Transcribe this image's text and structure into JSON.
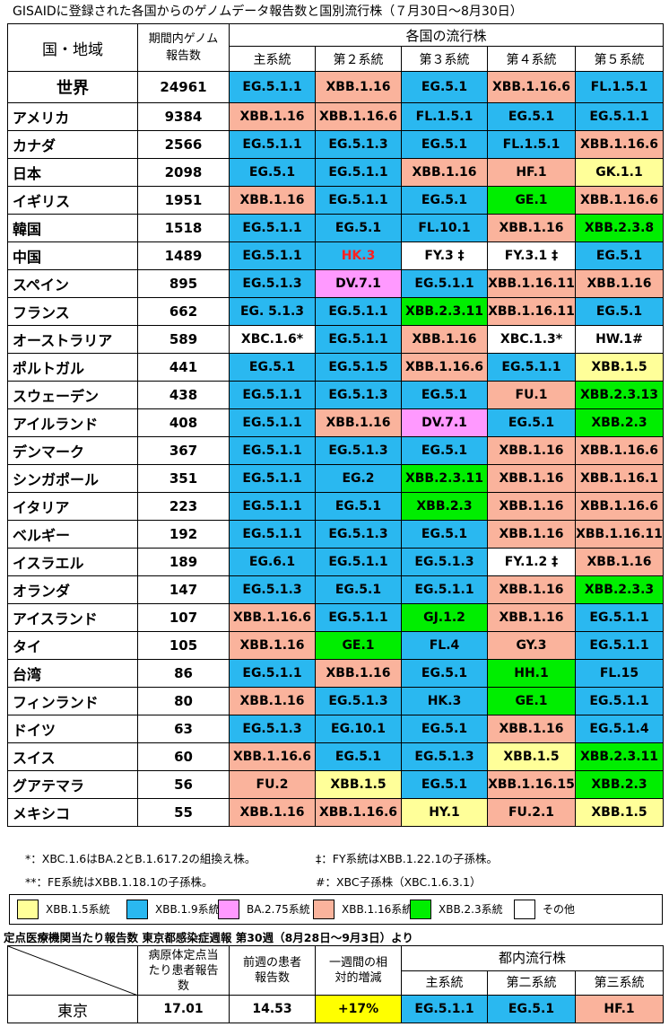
{
  "title": "GISAIDに登録された各国からのゲノムデータ報告数と国別流行株（７月30日～8月30日）",
  "header": {
    "country_region": "国・地域",
    "report_count_line1": "期間内ゲノム",
    "report_count_line2": "報告数",
    "lineages": "各国の流行株",
    "sub": [
      "主系統",
      "第２系統",
      "第３系統",
      "第４系統",
      "第５系統"
    ]
  },
  "rows": [
    {
      "country": "世界",
      "count": "24961",
      "lineages": [
        {
          "name": "EG.5.1.1",
          "group": "xbb19"
        },
        {
          "name": "XBB.1.16",
          "group": "xbb116"
        },
        {
          "name": "EG.5.1",
          "group": "xbb19"
        },
        {
          "name": "XBB.1.16.6",
          "group": "xbb116"
        },
        {
          "name": "FL.1.5.1",
          "group": "xbb19"
        }
      ]
    },
    {
      "country": "アメリカ",
      "count": "9384",
      "lineages": [
        {
          "name": "XBB.1.16",
          "group": "xbb116"
        },
        {
          "name": "XBB.1.16.6",
          "group": "xbb116"
        },
        {
          "name": "FL.1.5.1",
          "group": "xbb19"
        },
        {
          "name": "EG.5.1",
          "group": "xbb19"
        },
        {
          "name": "EG.5.1.1",
          "group": "xbb19"
        }
      ]
    },
    {
      "country": "カナダ",
      "count": "2566",
      "lineages": [
        {
          "name": "EG.5.1.1",
          "group": "xbb19"
        },
        {
          "name": "EG.5.1.3",
          "group": "xbb19"
        },
        {
          "name": "EG.5.1",
          "group": "xbb19"
        },
        {
          "name": "FL.1.5.1",
          "group": "xbb19"
        },
        {
          "name": "XBB.1.16.6",
          "group": "xbb116"
        }
      ]
    },
    {
      "country": "日本",
      "count": "2098",
      "lineages": [
        {
          "name": "EG.5.1",
          "group": "xbb19"
        },
        {
          "name": "EG.5.1.1",
          "group": "xbb19"
        },
        {
          "name": "XBB.1.16",
          "group": "xbb116"
        },
        {
          "name": "HF.1",
          "group": "xbb116"
        },
        {
          "name": "GK.1.1",
          "group": "xbb15"
        }
      ]
    },
    {
      "country": "イギリス",
      "count": "1951",
      "lineages": [
        {
          "name": "XBB.1.16",
          "group": "xbb116"
        },
        {
          "name": "EG.5.1.1",
          "group": "xbb19"
        },
        {
          "name": "EG.5.1",
          "group": "xbb19"
        },
        {
          "name": "GE.1",
          "group": "xbb23"
        },
        {
          "name": "XBB.1.16.6",
          "group": "xbb116"
        }
      ]
    },
    {
      "country": "韓国",
      "count": "1518",
      "lineages": [
        {
          "name": "EG.5.1.1",
          "group": "xbb19"
        },
        {
          "name": "EG.5.1",
          "group": "xbb19"
        },
        {
          "name": "FL.10.1",
          "group": "xbb19"
        },
        {
          "name": "XBB.1.16",
          "group": "xbb116"
        },
        {
          "name": "XBB.2.3.8",
          "group": "xbb23"
        }
      ]
    },
    {
      "country": "中国",
      "count": "1489",
      "lineages": [
        {
          "name": "EG.5.1.1",
          "group": "xbb19"
        },
        {
          "name": "HK.3",
          "group": "xbb19",
          "red": true
        },
        {
          "name": "FY.3 ‡",
          "group": "other"
        },
        {
          "name": "FY.3.1 ‡",
          "group": "other"
        },
        {
          "name": "EG.5.1",
          "group": "xbb19"
        }
      ]
    },
    {
      "country": "スペイン",
      "count": "895",
      "lineages": [
        {
          "name": "EG.5.1.3",
          "group": "xbb19"
        },
        {
          "name": "DV.7.1",
          "group": "ba275"
        },
        {
          "name": "EG.5.1.1",
          "group": "xbb19"
        },
        {
          "name": "XBB.1.16.11",
          "group": "xbb116"
        },
        {
          "name": "XBB.1.16",
          "group": "xbb116"
        }
      ]
    },
    {
      "country": "フランス",
      "count": "662",
      "lineages": [
        {
          "name": "EG. 5.1.3",
          "group": "xbb19"
        },
        {
          "name": "EG.5.1.1",
          "group": "xbb19"
        },
        {
          "name": "XBB.2.3.11",
          "group": "xbb23"
        },
        {
          "name": "XBB.1.16.11",
          "group": "xbb116"
        },
        {
          "name": "EG.5.1",
          "group": "xbb19"
        }
      ]
    },
    {
      "country": "オーストラリア",
      "count": "589",
      "lineages": [
        {
          "name": "XBC.1.6*",
          "group": "other"
        },
        {
          "name": "EG.5.1.1",
          "group": "xbb19"
        },
        {
          "name": "XBB.1.16",
          "group": "xbb116"
        },
        {
          "name": "XBC.1.3*",
          "group": "other"
        },
        {
          "name": "HW.1#",
          "group": "other"
        }
      ]
    },
    {
      "country": "ポルトガル",
      "count": "441",
      "lineages": [
        {
          "name": "EG.5.1",
          "group": "xbb19"
        },
        {
          "name": "EG.5.1.5",
          "group": "xbb19"
        },
        {
          "name": "XBB.1.16.6",
          "group": "xbb116"
        },
        {
          "name": "EG.5.1.1",
          "group": "xbb19"
        },
        {
          "name": "XBB.1.5",
          "group": "xbb15"
        }
      ]
    },
    {
      "country": "スウェーデン",
      "count": "438",
      "lineages": [
        {
          "name": "EG.5.1.1",
          "group": "xbb19"
        },
        {
          "name": "EG.5.1.3",
          "group": "xbb19"
        },
        {
          "name": "EG.5.1",
          "group": "xbb19"
        },
        {
          "name": "FU.1",
          "group": "xbb116"
        },
        {
          "name": "XBB.2.3.13",
          "group": "xbb23"
        }
      ]
    },
    {
      "country": "アイルランド",
      "count": "408",
      "lineages": [
        {
          "name": "EG.5.1.1",
          "group": "xbb19"
        },
        {
          "name": "XBB.1.16",
          "group": "xbb116"
        },
        {
          "name": "DV.7.1",
          "group": "ba275"
        },
        {
          "name": "EG.5.1",
          "group": "xbb19"
        },
        {
          "name": "XBB.2.3",
          "group": "xbb23"
        }
      ]
    },
    {
      "country": "デンマーク",
      "count": "367",
      "lineages": [
        {
          "name": "EG.5.1.1",
          "group": "xbb19"
        },
        {
          "name": "EG.5.1.3",
          "group": "xbb19"
        },
        {
          "name": "EG.5.1",
          "group": "xbb19"
        },
        {
          "name": "XBB.1.16",
          "group": "xbb116"
        },
        {
          "name": "XBB.1.16.6",
          "group": "xbb116"
        }
      ]
    },
    {
      "country": "シンガポール",
      "count": "351",
      "lineages": [
        {
          "name": "EG.5.1.1",
          "group": "xbb19"
        },
        {
          "name": "EG.2",
          "group": "xbb19"
        },
        {
          "name": "XBB.2.3.11",
          "group": "xbb23"
        },
        {
          "name": "XBB.1.16",
          "group": "xbb116"
        },
        {
          "name": "XBB.1.16.1",
          "group": "xbb116"
        }
      ]
    },
    {
      "country": "イタリア",
      "count": "223",
      "lineages": [
        {
          "name": "EG.5.1.1",
          "group": "xbb19"
        },
        {
          "name": "EG.5.1",
          "group": "xbb19"
        },
        {
          "name": "XBB.2.3",
          "group": "xbb23"
        },
        {
          "name": "XBB.1.16",
          "group": "xbb116"
        },
        {
          "name": "XBB.1.16.6",
          "group": "xbb116"
        }
      ]
    },
    {
      "country": "ベルギー",
      "count": "192",
      "lineages": [
        {
          "name": "EG.5.1.1",
          "group": "xbb19"
        },
        {
          "name": "EG.5.1.3",
          "group": "xbb19"
        },
        {
          "name": "EG.5.1",
          "group": "xbb19"
        },
        {
          "name": "XBB.1.16",
          "group": "xbb116"
        },
        {
          "name": "XBB.1.16.11",
          "group": "xbb116"
        }
      ]
    },
    {
      "country": "イスラエル",
      "count": "189",
      "lineages": [
        {
          "name": "EG.6.1",
          "group": "xbb19"
        },
        {
          "name": "EG.5.1.1",
          "group": "xbb19"
        },
        {
          "name": "EG.5.1.3",
          "group": "xbb19"
        },
        {
          "name": "FY.1.2 ‡",
          "group": "other"
        },
        {
          "name": "XBB.1.16",
          "group": "xbb116"
        }
      ]
    },
    {
      "country": "オランダ",
      "count": "147",
      "lineages": [
        {
          "name": "EG.5.1.3",
          "group": "xbb19"
        },
        {
          "name": "EG.5.1",
          "group": "xbb19"
        },
        {
          "name": "EG.5.1.1",
          "group": "xbb19"
        },
        {
          "name": "XBB.1.16",
          "group": "xbb116"
        },
        {
          "name": "XBB.2.3.3",
          "group": "xbb23"
        }
      ]
    },
    {
      "country": "アイスランド",
      "count": "107",
      "lineages": [
        {
          "name": "XBB.1.16.6",
          "group": "xbb116"
        },
        {
          "name": "EG.5.1.1",
          "group": "xbb19"
        },
        {
          "name": "GJ.1.2",
          "group": "xbb23"
        },
        {
          "name": "XBB.1.16",
          "group": "xbb116"
        },
        {
          "name": "EG.5.1.1",
          "group": "xbb19"
        }
      ]
    },
    {
      "country": "タイ",
      "count": "105",
      "lineages": [
        {
          "name": "XBB.1.16",
          "group": "xbb116"
        },
        {
          "name": "GE.1",
          "group": "xbb23"
        },
        {
          "name": "FL.4",
          "group": "xbb19"
        },
        {
          "name": "GY.3",
          "group": "xbb116"
        },
        {
          "name": "EG.5.1.1",
          "group": "xbb19"
        }
      ]
    },
    {
      "country": "台湾",
      "count": "86",
      "lineages": [
        {
          "name": "EG.5.1.1",
          "group": "xbb19"
        },
        {
          "name": "XBB.1.16",
          "group": "xbb116"
        },
        {
          "name": "EG.5.1",
          "group": "xbb19"
        },
        {
          "name": "HH.1",
          "group": "xbb23"
        },
        {
          "name": "FL.15",
          "group": "xbb19"
        }
      ]
    },
    {
      "country": "フィンランド",
      "count": "80",
      "lineages": [
        {
          "name": "XBB.1.16",
          "group": "xbb116"
        },
        {
          "name": "EG.5.1.3",
          "group": "xbb19"
        },
        {
          "name": "HK.3",
          "group": "xbb19"
        },
        {
          "name": "GE.1",
          "group": "xbb23"
        },
        {
          "name": "EG.5.1.1",
          "group": "xbb19"
        }
      ]
    },
    {
      "country": "ドイツ",
      "count": "63",
      "lineages": [
        {
          "name": "EG.5.1.3",
          "group": "xbb19"
        },
        {
          "name": "EG.10.1",
          "group": "xbb19"
        },
        {
          "name": "EG.5.1",
          "group": "xbb19"
        },
        {
          "name": "XBB.1.16",
          "group": "xbb116"
        },
        {
          "name": "EG.5.1.4",
          "group": "xbb19"
        }
      ]
    },
    {
      "country": "スイス",
      "count": "60",
      "lineages": [
        {
          "name": "XBB.1.16.6",
          "group": "xbb116"
        },
        {
          "name": "EG.5.1",
          "group": "xbb19"
        },
        {
          "name": "EG.5.1.3",
          "group": "xbb19"
        },
        {
          "name": "XBB.1.5",
          "group": "xbb15"
        },
        {
          "name": "XBB.2.3.11",
          "group": "xbb23"
        }
      ]
    },
    {
      "country": "グアテマラ",
      "count": "56",
      "lineages": [
        {
          "name": "FU.2",
          "group": "xbb116"
        },
        {
          "name": "XBB.1.5",
          "group": "xbb15"
        },
        {
          "name": "EG.5.1",
          "group": "xbb19"
        },
        {
          "name": "XBB.1.16.15",
          "group": "xbb116"
        },
        {
          "name": "XBB.2.3",
          "group": "xbb23"
        }
      ]
    },
    {
      "country": "メキシコ",
      "count": "55",
      "lineages": [
        {
          "name": "XBB.1.16",
          "group": "xbb116"
        },
        {
          "name": "XBB.1.16.6",
          "group": "xbb116"
        },
        {
          "name": "HY.1",
          "group": "xbb15"
        },
        {
          "name": "FU.2.1",
          "group": "xbb116"
        },
        {
          "name": "XBB.1.5",
          "group": "xbb15"
        }
      ]
    }
  ],
  "notes": [
    "*：XBC.1.6はBA.2とB.1.617.2の組換え株。",
    "‡：FY系統はXBB.1.22.1の子孫株。",
    "**：FE系統はXBB.1.18.1の子孫株。",
    "#：XBC子孫株（XBC.1.6.3.1）"
  ],
  "legend": [
    {
      "label": "XBB.1.5系統",
      "group": "xbb15"
    },
    {
      "label": "XBB.1.9系統",
      "group": "xbb19"
    },
    {
      "label": "BA.2.75系統",
      "group": "ba275"
    },
    {
      "label": "XBB.1.16系統",
      "group": "xbb116"
    },
    {
      "label": "XBB.2.3系統",
      "group": "xbb23"
    },
    {
      "label": "その他",
      "group": "other"
    }
  ],
  "colors": {
    "xbb15": "#ffff99",
    "xbb19": "#2ab8f0",
    "ba275": "#ff99ff",
    "xbb116": "#fab39c",
    "xbb23": "#00ee00",
    "other": "#ffffff",
    "increase_highlight": "#ffff00",
    "red_text": "#ff2020"
  },
  "tokyo": {
    "heading": "定点医療機関当たり報告数  東京都感染症週報 第30週（8月28日～9月3日）より",
    "col_per_site": "病原体定点当たり患者報告数",
    "col_prev_week": "前週の患者報告数",
    "col_change": "一週間の相対的増減",
    "col_lineages": "都内流行株",
    "sub": [
      "主系統",
      "第二系統",
      "第三系統"
    ],
    "city": "東京",
    "per_site": "17.01",
    "prev_week": "14.53",
    "change": "+17%",
    "lineages": [
      {
        "name": "EG.5.1.1",
        "group": "xbb19"
      },
      {
        "name": "EG.5.1",
        "group": "xbb19"
      },
      {
        "name": "HF.1",
        "group": "xbb116"
      }
    ]
  }
}
